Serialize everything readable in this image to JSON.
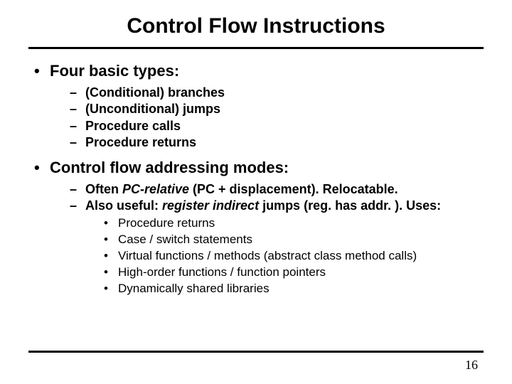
{
  "title": "Control Flow Instructions",
  "l1a": "Four basic types:",
  "l1a_items": {
    "a": "(Conditional) branches",
    "b": "(Unconditional) jumps",
    "c": "Procedure calls",
    "d": "Procedure returns"
  },
  "l1b": "Control flow addressing modes:",
  "l1b_items": {
    "a_pre": "Often ",
    "a_em": "PC-relative",
    "a_post": " (PC + displacement).  Relocatable.",
    "b_pre": "Also useful: ",
    "b_em": "register indirect",
    "b_post": " jumps (reg. has addr. ).  Uses:",
    "b_sub": {
      "a": "Procedure returns",
      "b": "Case / switch statements",
      "c": "Virtual functions / methods (abstract class method calls)",
      "d": "High-order functions / function pointers",
      "e": "Dynamically shared libraries"
    }
  },
  "page_number": "16",
  "colors": {
    "text": "#000000",
    "background": "#ffffff",
    "rule": "#000000"
  }
}
